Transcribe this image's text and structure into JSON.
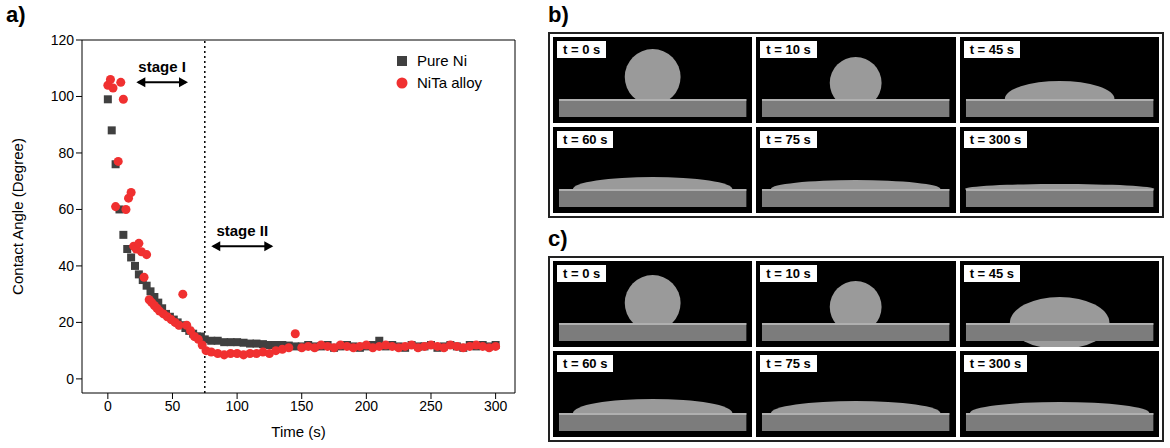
{
  "chart_data": {
    "type": "scatter",
    "xlabel": "Time (s)",
    "ylabel": "Contact Angle (Degree)",
    "xlim": [
      -20,
      315
    ],
    "xticks": [
      0,
      50,
      100,
      150,
      200,
      250,
      300
    ],
    "ylim": [
      -5,
      120
    ],
    "yticks": [
      0,
      20,
      40,
      60,
      80,
      100,
      120
    ],
    "legend": "upper right",
    "stage_boundary": 75,
    "annotations": [
      {
        "text": "stage I",
        "x": [
          22,
          62
        ],
        "y": 105
      },
      {
        "text": "stage II",
        "x": [
          80,
          128
        ],
        "y": 47
      }
    ],
    "series": [
      {
        "name": "Pure Ni",
        "color": "#404040",
        "marker": "square",
        "x": [
          0,
          3,
          6,
          9,
          12,
          15,
          18,
          21,
          24,
          27,
          30,
          33,
          36,
          39,
          42,
          45,
          48,
          51,
          54,
          57,
          60,
          63,
          66,
          69,
          72,
          75,
          80,
          85,
          90,
          95,
          100,
          105,
          110,
          115,
          120,
          125,
          130,
          135,
          140,
          145,
          150,
          155,
          160,
          165,
          170,
          175,
          180,
          185,
          190,
          195,
          200,
          205,
          210,
          215,
          220,
          225,
          230,
          235,
          240,
          245,
          250,
          255,
          260,
          265,
          270,
          275,
          280,
          285,
          290,
          295,
          300
        ],
        "values": [
          99,
          88,
          76,
          60,
          51,
          46,
          43,
          40,
          37,
          35,
          33,
          31,
          29,
          27,
          25,
          23,
          22,
          21,
          20,
          19,
          18,
          17,
          16,
          15,
          15,
          14,
          13.5,
          13.5,
          13,
          13,
          13,
          12.8,
          12.5,
          12.5,
          12.3,
          12,
          12,
          12,
          11.8,
          11.5,
          11.5,
          12,
          11.5,
          11.5,
          12,
          11,
          11.5,
          12,
          11.5,
          11,
          11.5,
          12,
          13.5,
          11.5,
          12,
          11.5,
          11,
          12,
          11.5,
          11.5,
          12,
          11,
          11.5,
          12,
          11.5,
          11,
          12,
          11.5,
          12,
          11.5,
          12
        ]
      },
      {
        "name": "NiTa alloy",
        "color": "#f03030",
        "marker": "circle",
        "x": [
          0,
          2,
          4,
          6,
          8,
          10,
          12,
          14,
          16,
          18,
          20,
          22,
          24,
          26,
          28,
          30,
          32,
          34,
          36,
          38,
          40,
          43,
          46,
          49,
          52,
          55,
          58,
          61,
          64,
          67,
          70,
          73,
          76,
          80,
          85,
          90,
          95,
          100,
          105,
          110,
          115,
          120,
          125,
          130,
          135,
          140,
          145,
          150,
          155,
          160,
          165,
          170,
          175,
          180,
          185,
          190,
          195,
          200,
          205,
          210,
          215,
          220,
          225,
          230,
          235,
          240,
          245,
          250,
          255,
          260,
          265,
          270,
          275,
          280,
          285,
          290,
          295,
          300
        ],
        "values": [
          104,
          106,
          103,
          61,
          77,
          105,
          99,
          60,
          64,
          66,
          47,
          46,
          48,
          45,
          36,
          44,
          28,
          27,
          26,
          25,
          24,
          23,
          22,
          21,
          20,
          19,
          30,
          19,
          17,
          15,
          14,
          12,
          10,
          9.5,
          9,
          8.5,
          9,
          9,
          8.5,
          9,
          9,
          9.5,
          9,
          10,
          10.5,
          11,
          16,
          11,
          11.5,
          11,
          12,
          11.5,
          11,
          12,
          11.5,
          11,
          11.5,
          12,
          11,
          11.5,
          12,
          11.5,
          11,
          11.5,
          12,
          11,
          11.5,
          12,
          11.5,
          11,
          12,
          11.5,
          11,
          11.5,
          12,
          11.5,
          11,
          11.5
        ]
      }
    ]
  },
  "panel_label": "a)",
  "image_panels": [
    {
      "label": "b)",
      "frames": [
        "t = 0 s",
        "t = 10 s",
        "t = 45 s",
        "t = 60 s",
        "t = 75 s",
        "t = 300 s"
      ]
    },
    {
      "label": "c)",
      "frames": [
        "t = 0 s",
        "t = 10 s",
        "t = 45 s",
        "t = 60 s",
        "t = 75 s",
        "t = 300 s"
      ]
    }
  ]
}
